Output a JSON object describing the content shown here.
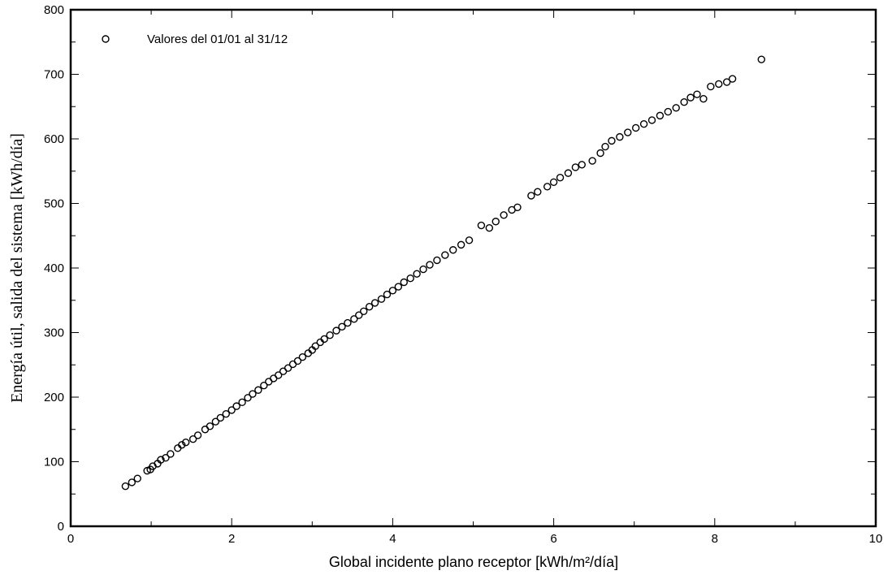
{
  "chart_data": {
    "type": "scatter",
    "title": "",
    "xlabel": "Global incidente plano receptor [kWh/m²/día]",
    "ylabel": "Energía útil, salida del sistema [kWh/día]",
    "xlim": [
      0,
      10
    ],
    "ylim": [
      0,
      800
    ],
    "xticks": [
      0,
      2,
      4,
      6,
      8,
      10
    ],
    "yticks": [
      0,
      100,
      200,
      300,
      400,
      500,
      600,
      700,
      800
    ],
    "grid": false,
    "legend_position": "top-left",
    "marker": "open-circle",
    "colors": {
      "marker": "#000000",
      "axis": "#000000"
    },
    "series": [
      {
        "name": "Valores del 01/01 al 31/12",
        "points": [
          [
            0.68,
            62
          ],
          [
            0.76,
            68
          ],
          [
            0.83,
            74
          ],
          [
            0.95,
            86
          ],
          [
            0.99,
            88
          ],
          [
            1.02,
            93
          ],
          [
            1.08,
            97
          ],
          [
            1.12,
            103
          ],
          [
            1.18,
            106
          ],
          [
            1.24,
            112
          ],
          [
            1.33,
            121
          ],
          [
            1.38,
            126
          ],
          [
            1.43,
            130
          ],
          [
            1.52,
            135
          ],
          [
            1.58,
            141
          ],
          [
            1.67,
            150
          ],
          [
            1.73,
            155
          ],
          [
            1.8,
            162
          ],
          [
            1.86,
            168
          ],
          [
            1.93,
            174
          ],
          [
            2.0,
            180
          ],
          [
            2.06,
            186
          ],
          [
            2.13,
            192
          ],
          [
            2.2,
            199
          ],
          [
            2.26,
            205
          ],
          [
            2.33,
            211
          ],
          [
            2.4,
            218
          ],
          [
            2.46,
            224
          ],
          [
            2.52,
            229
          ],
          [
            2.58,
            234
          ],
          [
            2.64,
            240
          ],
          [
            2.7,
            245
          ],
          [
            2.76,
            251
          ],
          [
            2.82,
            256
          ],
          [
            2.88,
            262
          ],
          [
            2.95,
            268
          ],
          [
            3.0,
            273
          ],
          [
            3.04,
            279
          ],
          [
            3.1,
            285
          ],
          [
            3.15,
            290
          ],
          [
            3.22,
            296
          ],
          [
            3.3,
            303
          ],
          [
            3.37,
            309
          ],
          [
            3.44,
            315
          ],
          [
            3.52,
            321
          ],
          [
            3.58,
            327
          ],
          [
            3.64,
            333
          ],
          [
            3.71,
            340
          ],
          [
            3.78,
            346
          ],
          [
            3.86,
            352
          ],
          [
            3.93,
            359
          ],
          [
            4.0,
            365
          ],
          [
            4.07,
            371
          ],
          [
            4.14,
            378
          ],
          [
            4.22,
            384
          ],
          [
            4.3,
            391
          ],
          [
            4.38,
            398
          ],
          [
            4.46,
            405
          ],
          [
            4.55,
            412
          ],
          [
            4.65,
            420
          ],
          [
            4.75,
            428
          ],
          [
            4.85,
            436
          ],
          [
            4.95,
            443
          ],
          [
            5.1,
            466
          ],
          [
            5.2,
            462
          ],
          [
            5.28,
            472
          ],
          [
            5.38,
            482
          ],
          [
            5.48,
            490
          ],
          [
            5.55,
            494
          ],
          [
            5.72,
            512
          ],
          [
            5.8,
            518
          ],
          [
            5.92,
            526
          ],
          [
            6.0,
            533
          ],
          [
            6.08,
            540
          ],
          [
            6.18,
            547
          ],
          [
            6.27,
            556
          ],
          [
            6.35,
            560
          ],
          [
            6.48,
            566
          ],
          [
            6.58,
            578
          ],
          [
            6.64,
            588
          ],
          [
            6.72,
            597
          ],
          [
            6.82,
            603
          ],
          [
            6.92,
            610
          ],
          [
            7.02,
            617
          ],
          [
            7.12,
            623
          ],
          [
            7.22,
            629
          ],
          [
            7.32,
            636
          ],
          [
            7.42,
            642
          ],
          [
            7.52,
            648
          ],
          [
            7.62,
            657
          ],
          [
            7.7,
            664
          ],
          [
            7.78,
            669
          ],
          [
            7.86,
            662
          ],
          [
            7.95,
            681
          ],
          [
            8.05,
            685
          ],
          [
            8.15,
            688
          ],
          [
            8.22,
            693
          ],
          [
            8.58,
            723
          ]
        ]
      }
    ]
  }
}
